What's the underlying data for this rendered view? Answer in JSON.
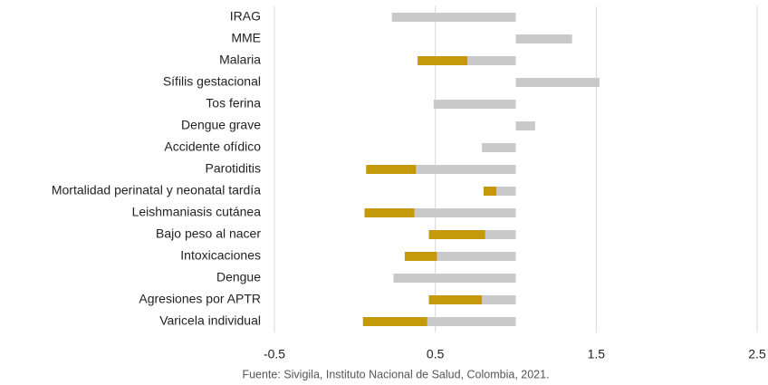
{
  "chart_data": {
    "type": "bar",
    "orientation": "horizontal",
    "base": 1,
    "categories": [
      "IRAG",
      "MME",
      "Malaria",
      "Sífilis gestacional",
      "Tos ferina",
      "Dengue grave",
      "Accidente ofídico",
      "Parotiditis",
      "Mortalidad perinatal y neonatal tardía",
      "Leishmaniasis cutánea",
      "Bajo peso al nacer",
      "Intoxicaciones",
      "Dengue",
      "Agresiones por APTR",
      "Varicela individual"
    ],
    "series": [
      {
        "color": "#c49a0a",
        "values": [
          null,
          null,
          0.39,
          null,
          null,
          null,
          null,
          0.07,
          0.8,
          0.06,
          0.46,
          0.31,
          null,
          0.46,
          0.05
        ]
      },
      {
        "color": "#c9c9c9",
        "values": [
          0.23,
          1.35,
          0.7,
          1.52,
          0.49,
          1.12,
          0.79,
          0.38,
          0.88,
          0.37,
          0.81,
          0.51,
          0.24,
          0.79,
          0.45
        ]
      }
    ],
    "xlim": [
      -0.5,
      2.5
    ],
    "xticks": [
      -0.5,
      0.5,
      1.5,
      2.5
    ],
    "grid": true,
    "source": "Fuente: Sivigila, Instituto Nacional de Salud, Colombia, 2021."
  }
}
